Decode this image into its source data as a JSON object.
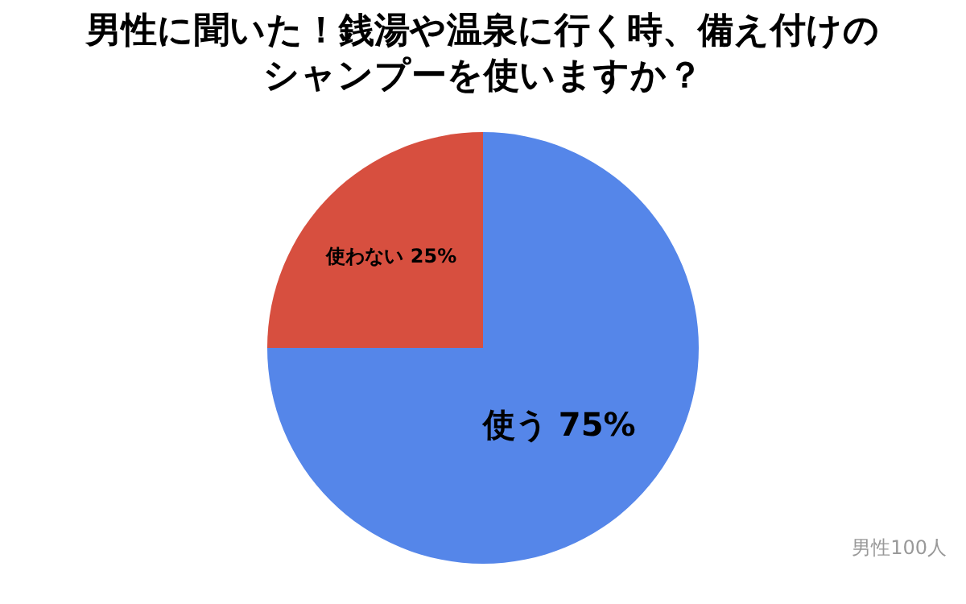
{
  "chart_data": {
    "type": "pie",
    "title": "男性に聞いた！銭湯や温泉に行く時、備え付けのシャンプーを使いますか？",
    "categories": [
      "使う",
      "使わない"
    ],
    "values": [
      75,
      25
    ],
    "colors": [
      "#5586e9",
      "#d74f3f"
    ],
    "value_labels": [
      "75%",
      "25%"
    ],
    "legend": false,
    "annotations": [
      "男性100人"
    ]
  }
}
